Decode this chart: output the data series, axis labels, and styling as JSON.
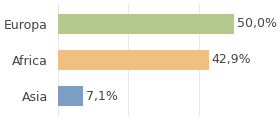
{
  "categories": [
    "Europa",
    "Africa",
    "Asia"
  ],
  "values": [
    50.0,
    42.9,
    7.1
  ],
  "bar_colors": [
    "#b5c98e",
    "#f0c080",
    "#7b9fc4"
  ],
  "labels": [
    "50,0%",
    "42,9%",
    "7,1%"
  ],
  "xlim": [
    0,
    60
  ],
  "background_color": "#ffffff",
  "bar_height": 0.55,
  "label_fontsize": 9,
  "tick_fontsize": 9
}
